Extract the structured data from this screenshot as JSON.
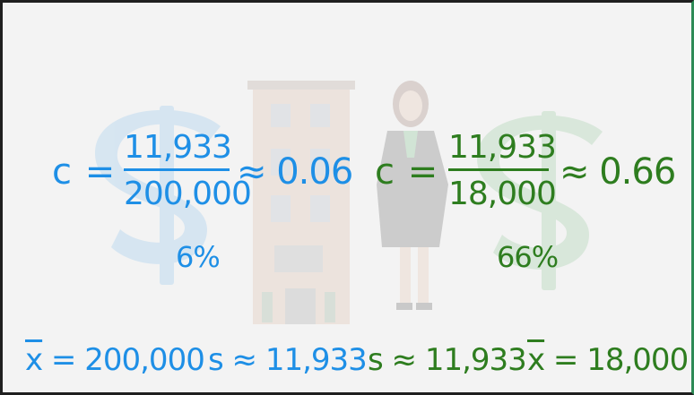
{
  "left": {
    "var": "c",
    "eq_sign": "=",
    "numerator": "11,933",
    "denominator": "200,000",
    "approx": "≈ 0.06",
    "percent": "6%"
  },
  "right": {
    "var": "c",
    "eq_sign": "=",
    "numerator": "11,933",
    "denominator": "18,000",
    "approx": "≈ 0.66",
    "percent": "66%"
  },
  "bottom": {
    "mean_left_sym": "x",
    "mean_left_rest": " = 200,000",
    "sd_left": "s ≈ 11,933",
    "sd_right": "s ≈ 11,933",
    "mean_right_sym": "x",
    "mean_right_rest": " = 18,000"
  },
  "colors": {
    "blue": "#1e8fe6",
    "green": "#2e7d1f",
    "frame_right": "#2e8b57"
  },
  "icons": [
    "dollar-sign-icon-blue",
    "building-icon",
    "businesswoman-icon",
    "dollar-sign-icon-green"
  ]
}
